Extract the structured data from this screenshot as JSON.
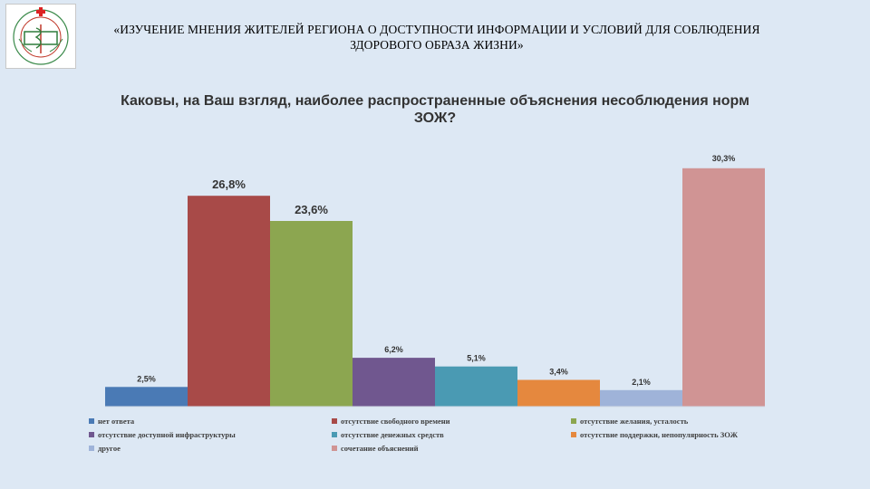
{
  "header": {
    "title": "«ИЗУЧЕНИЕ МНЕНИЯ ЖИТЕЛЕЙ РЕГИОНА О ДОСТУПНОСТИ ИНФОРМАЦИИ И УСЛОВИЙ ДЛЯ СОБЛЮДЕНИЯ ЗДОРОВОГО ОБРАЗА ЖИЗНИ»",
    "logo": "medical-organization-emblem"
  },
  "chart_data": {
    "type": "bar",
    "title": "Каковы, на Ваш взгляд, наиболее распространенные объяснения несоблюдения норм ЗОЖ?",
    "xlabel": "",
    "ylabel": "",
    "ylim": [
      0,
      35
    ],
    "grid": false,
    "legend_position": "bottom",
    "series": [
      {
        "name": "нет ответа",
        "value": 2.5,
        "label": "2,5%",
        "color": "#4a7ab5"
      },
      {
        "name": "отсутствие свободного времени",
        "value": 26.8,
        "label": "26,8%",
        "color": "#a84a48"
      },
      {
        "name": "отсутствие желания, усталость",
        "value": 23.6,
        "label": "23,6%",
        "color": "#8ca650"
      },
      {
        "name": "отсутствие доступной инфраструктуры",
        "value": 6.2,
        "label": "6,2%",
        "color": "#70578f"
      },
      {
        "name": "отсутствие денежных средств",
        "value": 5.1,
        "label": "5,1%",
        "color": "#4a9ab3"
      },
      {
        "name": "отсутствие поддержки, непопулярность ЗОЖ",
        "value": 3.4,
        "label": "3,4%",
        "color": "#e5883e"
      },
      {
        "name": "другое",
        "value": 2.1,
        "label": "2,1%",
        "color": "#9fb3d9"
      },
      {
        "name": "сочетание объяснений",
        "value": 30.3,
        "label": "30,3%",
        "color": "#d09494"
      }
    ]
  }
}
